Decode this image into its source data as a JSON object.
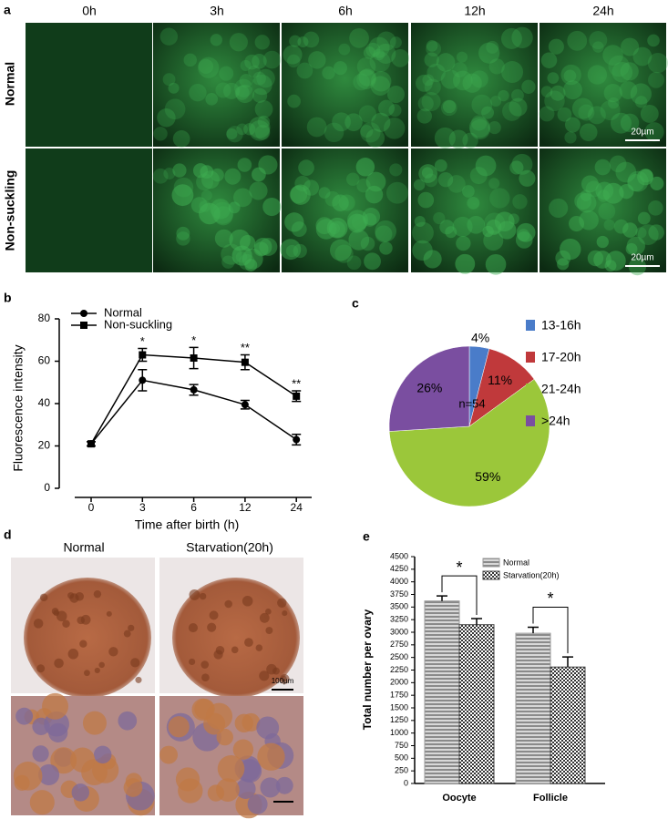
{
  "panel_a": {
    "label": "a",
    "columns": [
      "0h",
      "3h",
      "6h",
      "12h",
      "24h"
    ],
    "rows": [
      "Normal",
      "Non-suckling"
    ],
    "scale_bar": "20µm"
  },
  "panel_d": {
    "label": "d",
    "columns": [
      "Normal",
      "Starvation(20h)"
    ],
    "scale_bar": "100µm"
  },
  "chart_data": [
    {
      "type": "line",
      "panel_label": "b",
      "ylabel": "Fluorescence intensity",
      "xlabel": "Time after birth (h)",
      "categories": [
        "0",
        "3",
        "6",
        "12",
        "24"
      ],
      "ylim": [
        0,
        80
      ],
      "yticks": [
        0,
        20,
        40,
        60,
        80
      ],
      "series": [
        {
          "name": "Normal",
          "color": "#000000",
          "marker": "circle",
          "values": [
            21,
            51,
            46.5,
            39.5,
            23
          ],
          "errors": [
            1,
            5,
            2.5,
            2,
            2.5
          ]
        },
        {
          "name": "Non-suckling",
          "color": "#000000",
          "marker": "square",
          "values": [
            21,
            63,
            61.5,
            59.5,
            43.5
          ],
          "errors": [
            1,
            3,
            5,
            3.5,
            2.5
          ]
        }
      ],
      "significance": [
        null,
        "*",
        "*",
        "**",
        "**"
      ]
    },
    {
      "type": "pie",
      "panel_label": "c",
      "annotation": "n=54",
      "categories": [
        "13-16h",
        "17-20h",
        "21-24h",
        ">24h"
      ],
      "values": [
        4,
        11,
        59,
        26
      ],
      "value_labels": [
        "4%",
        "11%",
        "59%",
        "26%"
      ],
      "colors": [
        "#4a7cc9",
        "#c0393b",
        "#9bc73a",
        "#7a4ea0"
      ]
    },
    {
      "type": "bar",
      "panel_label": "e",
      "ylabel": "Total number per ovary",
      "categories": [
        "Oocyte",
        "Follicle"
      ],
      "ylim": [
        0,
        4500
      ],
      "yticks": [
        0,
        250,
        500,
        750,
        1000,
        1250,
        1500,
        1750,
        2000,
        2250,
        2500,
        2750,
        3000,
        3250,
        3500,
        3750,
        4000,
        4250,
        4500
      ],
      "series": [
        {
          "name": "Normal",
          "color": "#9a9a9a",
          "values": [
            3620,
            2980
          ],
          "errors": [
            100,
            120
          ]
        },
        {
          "name": "Starvation(20h)",
          "color": "#444444",
          "values": [
            3150,
            2310
          ],
          "errors": [
            120,
            200
          ]
        }
      ],
      "significance": [
        "*",
        "*"
      ]
    }
  ]
}
